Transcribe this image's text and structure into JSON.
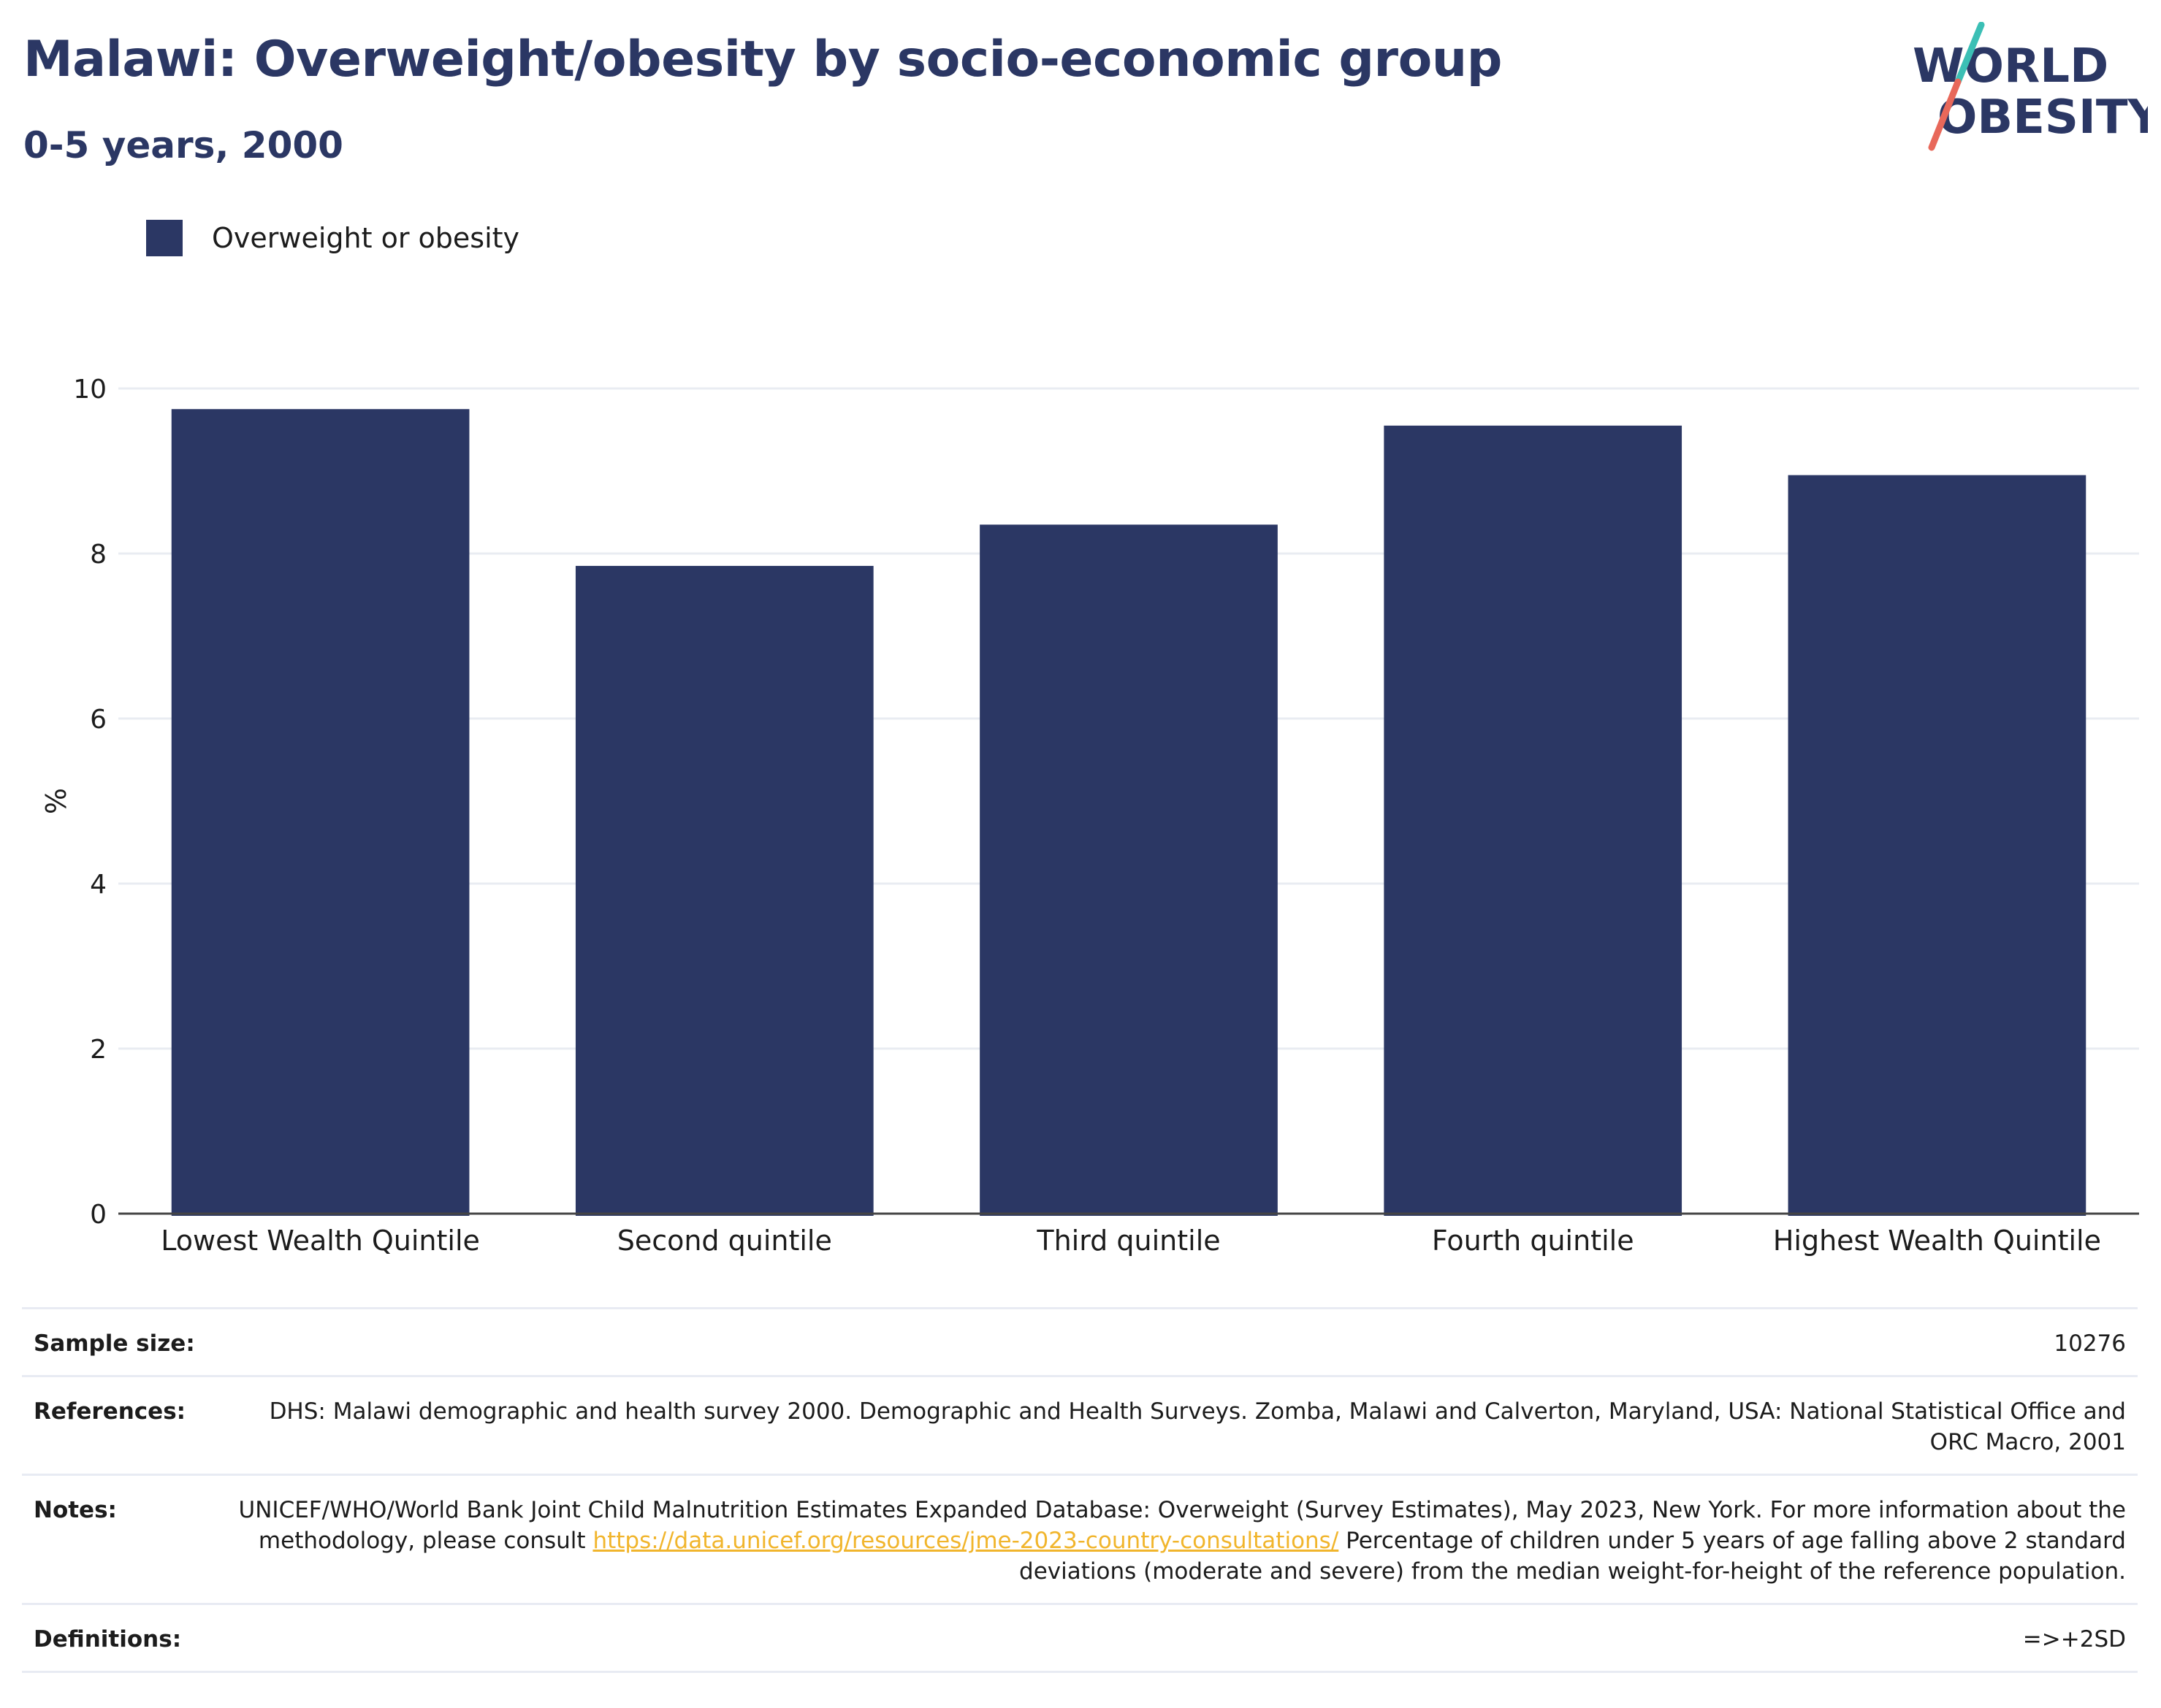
{
  "header": {
    "title": "Malawi: Overweight/obesity by socio-economic group",
    "subtitle": "0-5 years, 2000"
  },
  "logo": {
    "line1": "WORLD",
    "line2": "OBESITY",
    "colors": {
      "text": "#2b3764",
      "slash_top": "#3bbfb5",
      "slash_bottom": "#e8685a"
    }
  },
  "legend": {
    "label": "Overweight or obesity",
    "color": "#2b3764"
  },
  "chart_data": {
    "type": "bar",
    "categories": [
      "Lowest Wealth Quintile",
      "Second quintile",
      "Third quintile",
      "Fourth quintile",
      "Highest Wealth Quintile"
    ],
    "series": [
      {
        "name": "Overweight or obesity",
        "values": [
          9.75,
          7.85,
          8.35,
          9.55,
          8.95
        ],
        "color": "#2b3764"
      }
    ],
    "ylabel": "%",
    "ylim": [
      0,
      10
    ],
    "yticks": [
      0,
      2,
      4,
      6,
      8,
      10
    ],
    "grid": true,
    "legend_position": "top-left"
  },
  "footer": {
    "sample_size_label": "Sample size:",
    "sample_size_value": "10276",
    "references_label": "References:",
    "references_value": "DHS: Malawi demographic and health survey 2000. Demographic and Health Surveys. Zomba, Malawi and Calverton, Maryland, USA: National Statistical Office and ORC Macro, 2001",
    "notes_label": "Notes:",
    "notes_text_before": "UNICEF/WHO/World Bank Joint Child Malnutrition Estimates Expanded Database: Overweight (Survey Estimates), May 2023, New York. For more information about the methodology, please consult ",
    "notes_link": "https://data.unicef.org/resources/jme-2023-country-consultations/",
    "notes_text_after": " Percentage of children under 5 years of age falling above 2 standard deviations (moderate and severe) from the median weight-for-height of the reference population.",
    "definitions_label": "Definitions:",
    "definitions_value": "=>+2SD"
  }
}
